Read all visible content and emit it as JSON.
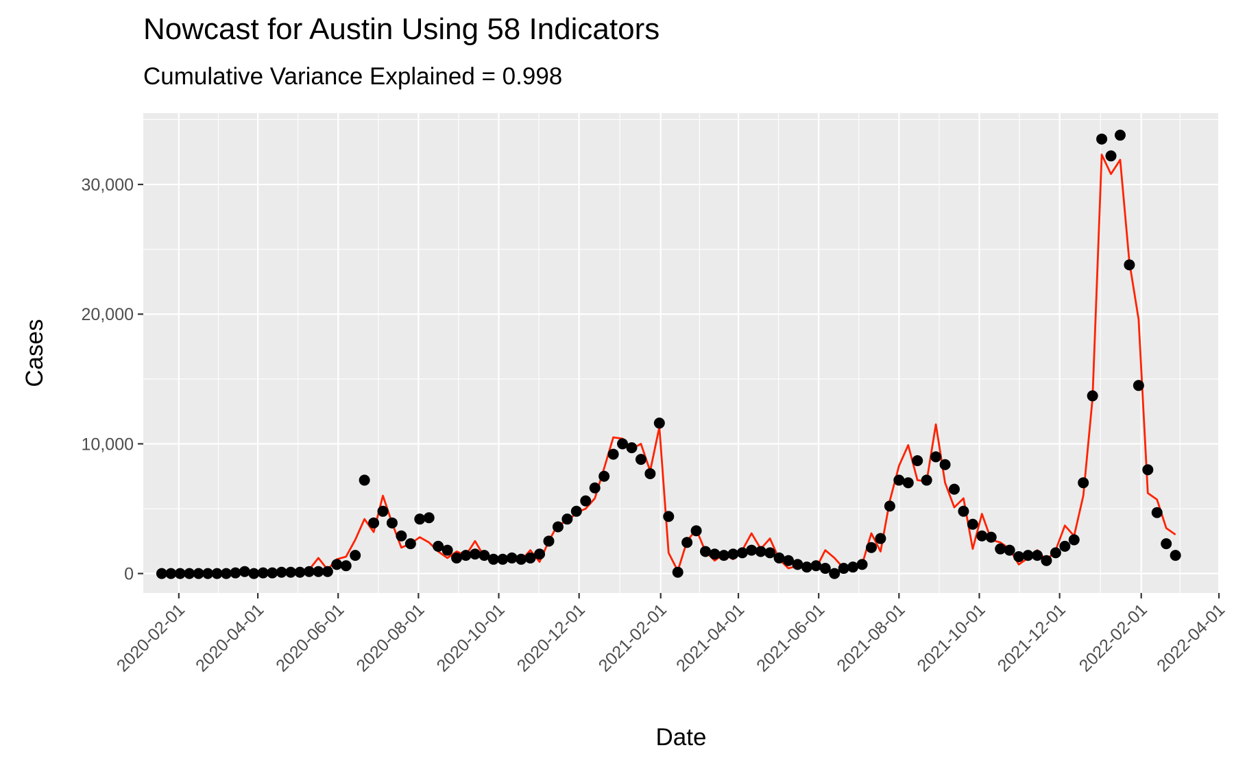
{
  "chart_data": {
    "type": "line+scatter",
    "title": "Nowcast for Austin Using 58 Indicators",
    "subtitle": "Cumulative Variance Explained = 0.998",
    "xlabel": "Date",
    "ylabel": "Cases",
    "x_axis_type": "date",
    "x_ticks": [
      "2020-02-01",
      "2020-04-01",
      "2020-06-01",
      "2020-08-01",
      "2020-10-01",
      "2020-12-01",
      "2021-02-01",
      "2021-04-01",
      "2021-06-01",
      "2021-08-01",
      "2021-10-01",
      "2021-12-01",
      "2022-02-01",
      "2022-04-01"
    ],
    "y_ticks": [
      0,
      10000,
      20000,
      30000
    ],
    "y_tick_labels": [
      "0",
      "10,000",
      "20,000",
      "30,000"
    ],
    "xlim": [
      "2020-01-05",
      "2022-04-01"
    ],
    "ylim": [
      -1500,
      35500
    ],
    "grid": true,
    "legend": "none",
    "colors": {
      "panel": "#EBEBEB",
      "grid": "#FFFFFF",
      "line": "#FF2200",
      "points": "#000000",
      "text": "#4D4D4D"
    },
    "start_date": "2020-01-19",
    "interval_days": 7,
    "series": [
      {
        "kind": "points",
        "values": [
          0,
          0,
          0,
          0,
          0,
          0,
          0,
          0,
          50,
          150,
          0,
          50,
          50,
          100,
          100,
          100,
          150,
          150,
          150,
          700,
          600,
          1400,
          7200,
          3900,
          4800,
          3900,
          2900,
          2300,
          4200,
          4300,
          2100,
          1800,
          1200,
          1400,
          1500,
          1400,
          1100,
          1100,
          1200,
          1100,
          1200,
          1500,
          2500,
          3600,
          4200,
          4800,
          5600,
          6600,
          7500,
          9200,
          10000,
          9700,
          8800,
          7700,
          11600,
          4400,
          100,
          2400,
          3300,
          1700,
          1500,
          1400,
          1500,
          1600,
          1800,
          1700,
          1600,
          1200,
          1000,
          700,
          500,
          600,
          400,
          0,
          400,
          500,
          700,
          2000,
          2700,
          5200,
          7200,
          7000,
          8700,
          7200,
          9000,
          8400,
          6500,
          4800,
          3800,
          2900,
          2800,
          1900,
          1800,
          1300,
          1400,
          1400,
          1000,
          1600,
          2100,
          2600,
          7000,
          13700,
          33500,
          32200,
          33800,
          23800,
          14500,
          8000,
          4700,
          2300,
          1400
        ]
      },
      {
        "kind": "line",
        "values": [
          0,
          0,
          0,
          0,
          0,
          0,
          0,
          0,
          50,
          150,
          0,
          50,
          50,
          100,
          100,
          100,
          300,
          1200,
          300,
          1100,
          1300,
          2600,
          4200,
          3200,
          6000,
          3900,
          2000,
          2300,
          2800,
          2400,
          1700,
          1200,
          1700,
          1400,
          2500,
          1300,
          1000,
          1100,
          1300,
          1000,
          1800,
          900,
          2500,
          3800,
          4000,
          4700,
          5000,
          5800,
          8100,
          10500,
          10400,
          9600,
          10000,
          7900,
          11300,
          1600,
          200,
          2500,
          3400,
          1700,
          1000,
          1500,
          1100,
          1800,
          3100,
          1900,
          2700,
          1100,
          400,
          600,
          500,
          400,
          1800,
          1200,
          400,
          500,
          700,
          3100,
          1700,
          5600,
          8300,
          9900,
          7200,
          7100,
          11500,
          7000,
          5100,
          5800,
          1900,
          4600,
          2600,
          2400,
          1900,
          700,
          1200,
          1800,
          1000,
          1800,
          3700,
          2900,
          6000,
          13500,
          32300,
          30800,
          31900,
          24000,
          19600,
          6200,
          5700,
          3500,
          3000
        ]
      }
    ]
  }
}
